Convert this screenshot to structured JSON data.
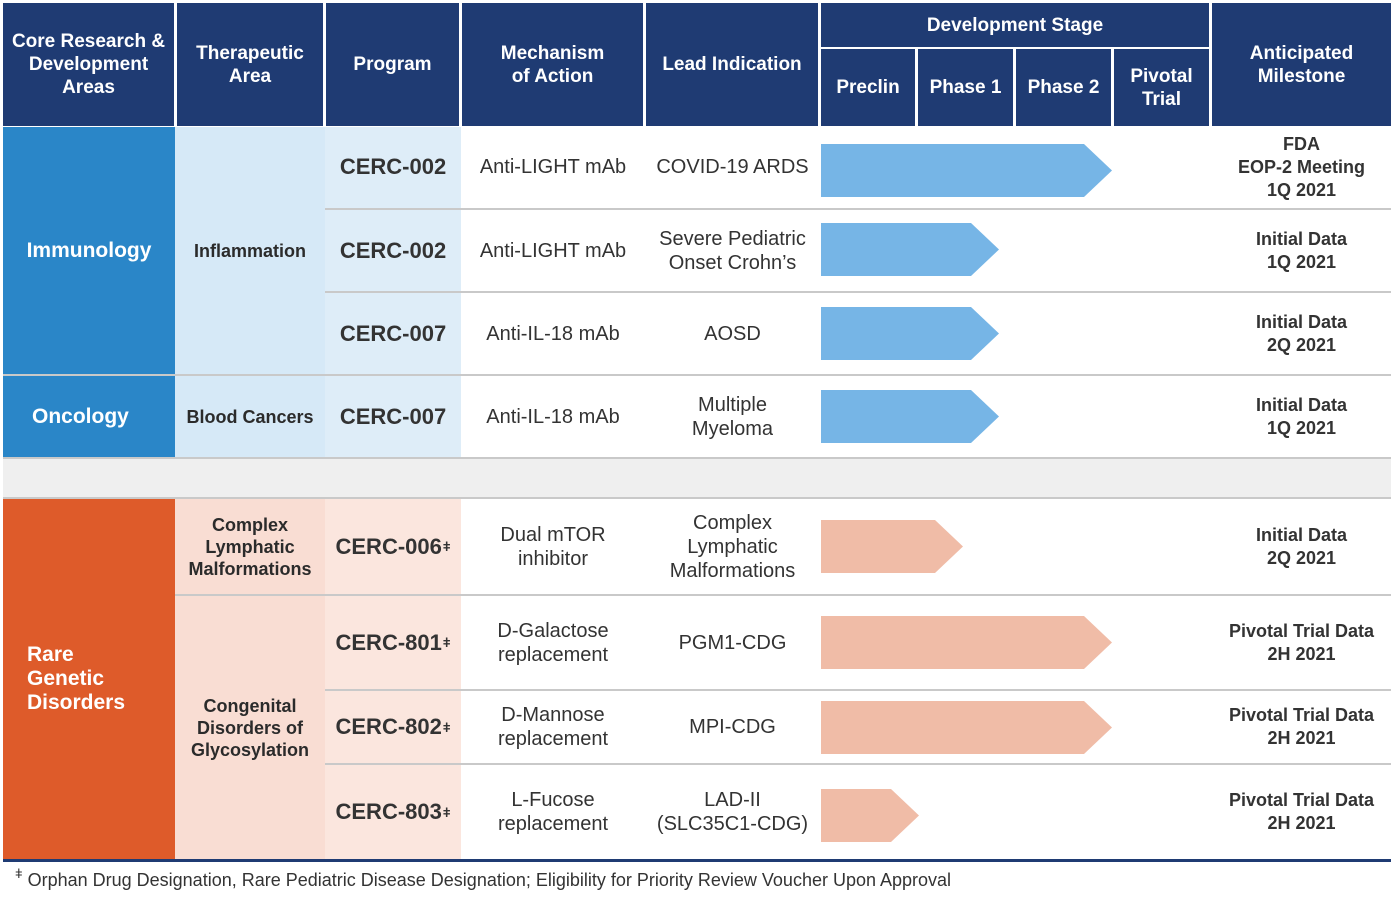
{
  "header": {
    "core_areas": "Core Research & Development Areas",
    "therapeutic_area": "Therapeutic Area",
    "program": "Program",
    "mechanism": "Mechanism of Action",
    "lead_indication": "Lead Indication",
    "development_stage": "Development Stage",
    "stages": [
      "Preclin",
      "Phase 1",
      "Phase 2",
      "Pivotal Trial"
    ],
    "milestone": "Anticipated Milestone"
  },
  "areas": {
    "immunology": "Immunology",
    "oncology": "Oncology",
    "rare": "Rare Genetic Disorders"
  },
  "therapeutic_areas": {
    "inflammation": "Inflammation",
    "blood_cancers": "Blood Cancers",
    "clm": "Complex Lymphatic Malformations",
    "cdg": "Congenital Disorders of Glycosylation"
  },
  "rows": [
    {
      "program": "CERC-002",
      "dagger": "",
      "mechanism": "Anti-LIGHT mAb",
      "indication": "COVID-19 ARDS",
      "stage": "Phase 2 complete",
      "milestone": [
        "FDA",
        "EOP-2 Meeting",
        "1Q 2021"
      ]
    },
    {
      "program": "CERC-002",
      "dagger": "",
      "mechanism": "Anti-LIGHT mAb",
      "indication": "Severe Pediatric Onset Crohn’s",
      "stage": "Phase 1 complete",
      "milestone": [
        "Initial Data",
        "1Q 2021"
      ]
    },
    {
      "program": "CERC-007",
      "dagger": "",
      "mechanism": "Anti-IL-18 mAb",
      "indication": "AOSD",
      "stage": "Phase 1 complete",
      "milestone": [
        "Initial Data",
        "2Q 2021"
      ]
    },
    {
      "program": "CERC-007",
      "dagger": "",
      "mechanism": "Anti-IL-18 mAb",
      "indication": "Multiple Myeloma",
      "stage": "Phase 1 complete",
      "milestone": [
        "Initial Data",
        "1Q 2021"
      ]
    },
    {
      "program": "CERC-006",
      "dagger": "ǂ",
      "mechanism": "Dual mTOR inhibitor",
      "indication": "Complex Lymphatic Malformations",
      "stage": "Phase 1 partial",
      "milestone": [
        "Initial Data",
        "2Q 2021"
      ]
    },
    {
      "program": "CERC-801",
      "dagger": "ǂ",
      "mechanism": "D-Galactose replacement",
      "indication": "PGM1-CDG",
      "stage": "Phase 2 complete",
      "milestone": [
        "Pivotal Trial Data",
        "2H 2021"
      ]
    },
    {
      "program": "CERC-802",
      "dagger": "ǂ",
      "mechanism": "D-Mannose replacement",
      "indication": "MPI-CDG",
      "stage": "Phase 2 complete",
      "milestone": [
        "Pivotal Trial Data",
        "2H 2021"
      ]
    },
    {
      "program": "CERC-803",
      "dagger": "ǂ",
      "mechanism": "L-Fucose replacement",
      "indication": "LAD-II (SLC35C1-CDG)",
      "stage": "Preclin complete",
      "milestone": [
        "Pivotal Trial Data",
        "2H 2021"
      ]
    }
  ],
  "footnote": {
    "symbol": "ǂ",
    "text": " Orphan Drug Designation, Rare Pediatric Disease Designation; Eligibility for Priority Review Voucher Upon Approval"
  },
  "colors": {
    "header": "#1f3b73",
    "immunology": "#2a86c8",
    "rare": "#de5b2a",
    "arrow_blue": "#76b5e6",
    "arrow_peach": "#f0bca7"
  }
}
